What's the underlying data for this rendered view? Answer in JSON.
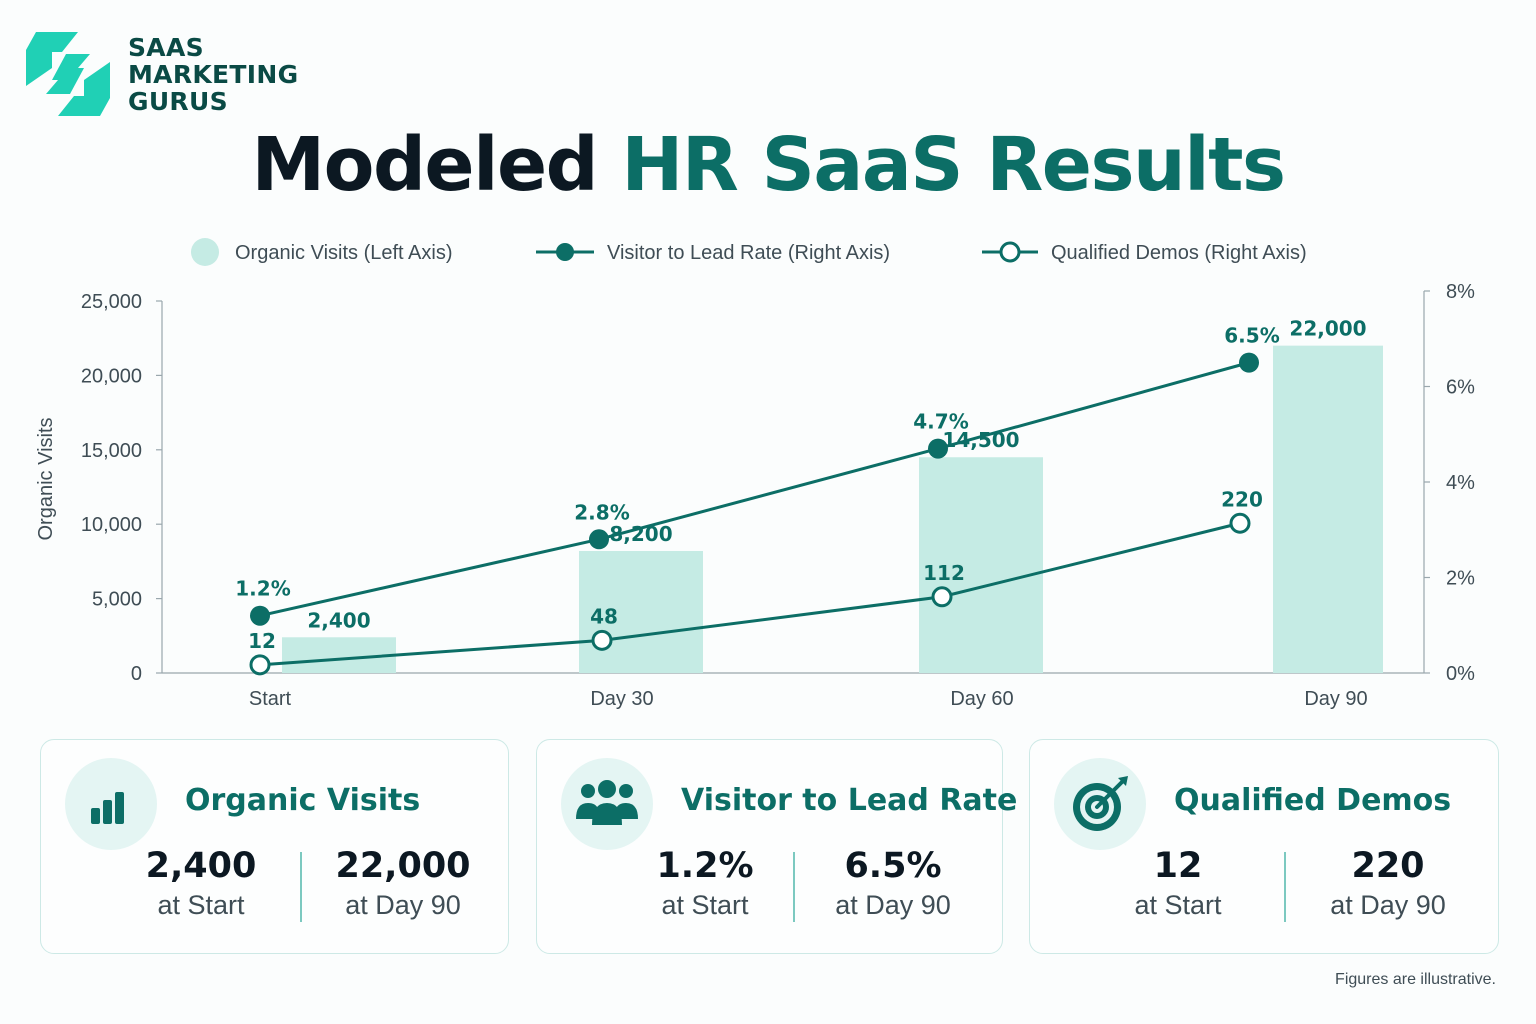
{
  "brand": {
    "name_lines": [
      "SAAS",
      "MARKETING",
      "GURUS"
    ],
    "accent": "#20d0b5",
    "dark": "#0a4a45"
  },
  "title": {
    "part1": "Modeled",
    "part2": "HR SaaS Results"
  },
  "chart_data": {
    "type": "bar",
    "categories": [
      "Start",
      "Day 30",
      "Day 60",
      "Day 90"
    ],
    "series": [
      {
        "name": "Organic Visits (Left Axis)",
        "type": "bar",
        "axis": "left",
        "values": [
          2400,
          8200,
          14500,
          22000
        ],
        "labels": [
          "2,400",
          "8,200",
          "14,500",
          "22,000"
        ],
        "color": "#c5ebe4"
      },
      {
        "name": "Visitor to Lead Rate (Right Axis)",
        "type": "line",
        "axis": "right",
        "values": [
          1.2,
          2.8,
          4.7,
          6.5
        ],
        "labels": [
          "1.2%",
          "2.8%",
          "4.7%",
          "6.5%"
        ],
        "color": "#0c6e66",
        "marker": "filled"
      },
      {
        "name": "Qualified Demos (Right Axis)",
        "type": "line",
        "axis": "right",
        "values": [
          12,
          48,
          112,
          220
        ],
        "labels": [
          "12",
          "48",
          "112",
          "220"
        ],
        "color": "#0c6e66",
        "marker": "hollow"
      }
    ],
    "y_left": {
      "label": "Organic Visits",
      "ylim": [
        0,
        25000
      ],
      "ticks": [
        0,
        5000,
        10000,
        15000,
        20000,
        25000
      ],
      "tick_labels": [
        "0",
        "5,000",
        "10,000",
        "15,000",
        "20,000",
        "25,000"
      ]
    },
    "y_right": {
      "label": "",
      "ylim": [
        0,
        8
      ],
      "ticks": [
        0,
        2,
        4,
        6,
        8
      ],
      "tick_labels": [
        "0%",
        "2%",
        "4%",
        "6%",
        "8%"
      ]
    },
    "legend_position": "top",
    "grid": false
  },
  "cards": [
    {
      "title": "Organic Visits",
      "icon": "bar-chart-icon",
      "start_value": "2,400",
      "start_label": "at Start",
      "end_value": "22,000",
      "end_label": "at Day 90"
    },
    {
      "title": "Visitor to Lead Rate",
      "icon": "people-icon",
      "start_value": "1.2%",
      "start_label": "at Start",
      "end_value": "6.5%",
      "end_label": "at Day 90"
    },
    {
      "title": "Qualified Demos",
      "icon": "target-icon",
      "start_value": "12",
      "start_label": "at Start",
      "end_value": "220",
      "end_label": "at Day 90"
    }
  ],
  "footnote": "Figures are illustrative."
}
